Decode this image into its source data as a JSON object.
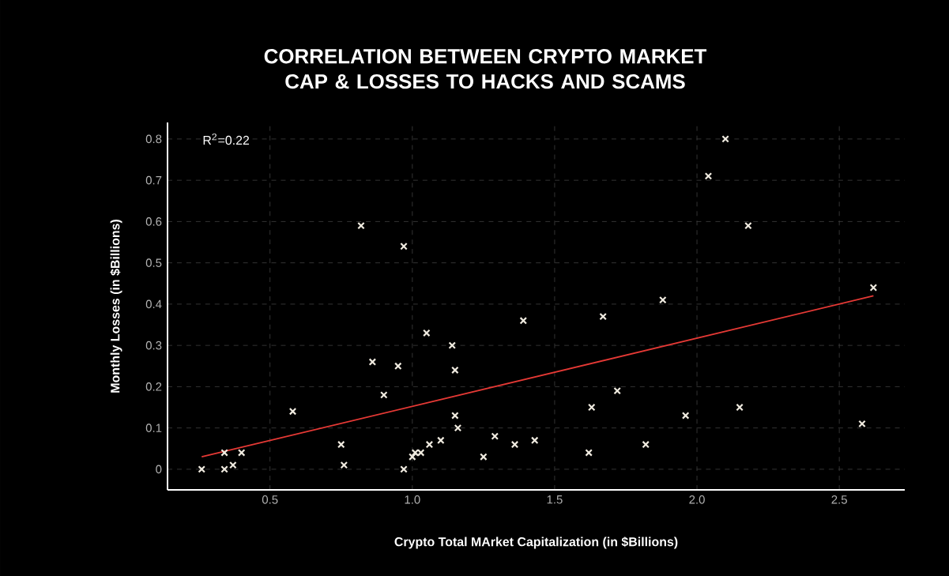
{
  "chart_data": {
    "type": "scatter",
    "title": "CORRELATION BETWEEN CRYPTO MARKET CAP & LOSSES TO HACKS AND SCAMS",
    "xlabel": "Crypto Total MArket Capitalization (in $Billions)",
    "ylabel": "Monthly Losses  (in $Billions)",
    "annotations": [
      "R$^{2}$=0.22"
    ],
    "xlim": [
      0.14,
      2.73
    ],
    "ylim": [
      -0.05,
      0.84
    ],
    "xticks": [
      0.5,
      {
        "value": 1,
        "label": "1.0"
      },
      1.5,
      {
        "value": 2,
        "label": "2.0"
      },
      2.5
    ],
    "yticks": [
      0,
      0.1,
      0.2,
      0.3,
      0.4,
      0.5,
      0.6,
      0.7,
      0.8
    ],
    "grid": true,
    "marker": "cross",
    "series": [
      {
        "color": "#f0ebe0",
        "x": [
          0.26,
          0.34,
          0.34,
          0.37,
          0.4,
          0.58,
          0.75,
          0.76,
          0.82,
          0.86,
          0.9,
          0.95,
          0.97,
          0.97,
          1.0,
          1.01,
          1.03,
          1.05,
          1.06,
          1.1,
          1.14,
          1.15,
          1.15,
          1.16,
          1.25,
          1.29,
          1.36,
          1.39,
          1.43,
          1.62,
          1.63,
          1.67,
          1.72,
          1.82,
          1.88,
          1.96,
          2.04,
          2.1,
          2.15,
          2.18,
          2.58,
          2.62
        ],
        "values": [
          0,
          0.04,
          0,
          0.01,
          0.04,
          0.14,
          0.06,
          0.01,
          0.59,
          0.26,
          0.18,
          0.25,
          0.54,
          0,
          0.03,
          0.04,
          0.04,
          0.33,
          0.06,
          0.07,
          0.3,
          0.24,
          0.13,
          0.1,
          0.03,
          0.08,
          0.06,
          0.36,
          0.07,
          0.04,
          0.15,
          0.37,
          0.19,
          0.06,
          0.41,
          0.13,
          0.71,
          0.8,
          0.15,
          0.59,
          0.11,
          0.44
        ]
      },
      {
        "type": "line",
        "color": "#e53935",
        "line_style": "solid",
        "marker": "none",
        "x": [
          0.26,
          2.62
        ],
        "values": [
          0.03,
          0.42
        ]
      }
    ]
  }
}
